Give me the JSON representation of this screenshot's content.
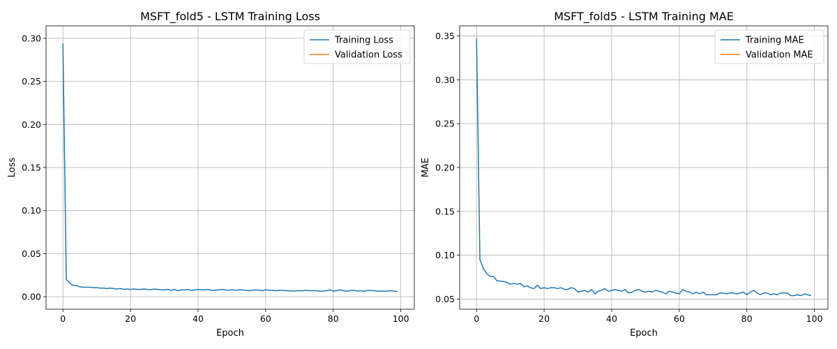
{
  "chart_data": [
    {
      "type": "line",
      "title": "MSFT_fold5 - LSTM Training Loss",
      "xlabel": "Epoch",
      "ylabel": "Loss",
      "xlim": [
        -5,
        104
      ],
      "ylim": [
        -0.0145,
        0.3145
      ],
      "xticks": [
        0,
        20,
        40,
        60,
        80,
        100
      ],
      "yticks": [
        0.0,
        0.05,
        0.1,
        0.15,
        0.2,
        0.25,
        0.3
      ],
      "ytick_labels": [
        "0.00",
        "0.05",
        "0.10",
        "0.15",
        "0.20",
        "0.25",
        "0.30"
      ],
      "grid": true,
      "legend_position": "top-right",
      "series": [
        {
          "name": "Training Loss",
          "color": "#1f77b4",
          "x_start": 0,
          "values": [
            0.294,
            0.02,
            0.016,
            0.013,
            0.013,
            0.0115,
            0.011,
            0.011,
            0.011,
            0.0105,
            0.0105,
            0.01,
            0.01,
            0.0095,
            0.01,
            0.0095,
            0.009,
            0.0095,
            0.0085,
            0.009,
            0.0085,
            0.009,
            0.0085,
            0.0085,
            0.009,
            0.0085,
            0.008,
            0.009,
            0.0085,
            0.008,
            0.008,
            0.0085,
            0.0075,
            0.0085,
            0.007,
            0.008,
            0.008,
            0.0085,
            0.0075,
            0.008,
            0.0085,
            0.008,
            0.008,
            0.0085,
            0.0075,
            0.0075,
            0.008,
            0.0085,
            0.008,
            0.0075,
            0.008,
            0.0075,
            0.008,
            0.008,
            0.0075,
            0.007,
            0.0075,
            0.008,
            0.0075,
            0.007,
            0.008,
            0.0075,
            0.0075,
            0.007,
            0.0075,
            0.0075,
            0.007,
            0.007,
            0.0065,
            0.007,
            0.007,
            0.007,
            0.0075,
            0.007,
            0.007,
            0.007,
            0.0065,
            0.0065,
            0.007,
            0.008,
            0.0065,
            0.007,
            0.008,
            0.007,
            0.0065,
            0.007,
            0.0075,
            0.0065,
            0.007,
            0.0065,
            0.007,
            0.0075,
            0.007,
            0.0065,
            0.0065,
            0.0065,
            0.0065,
            0.007,
            0.0065,
            0.006
          ]
        },
        {
          "name": "Validation Loss",
          "color": "#ff7f0e",
          "x_start": 0,
          "values": []
        }
      ]
    },
    {
      "type": "line",
      "title": "MSFT_fold5 - LSTM Training MAE",
      "xlabel": "Epoch",
      "ylabel": "MAE",
      "xlim": [
        -5,
        104
      ],
      "ylim": [
        0.0385,
        0.3615
      ],
      "xticks": [
        0,
        20,
        40,
        60,
        80,
        100
      ],
      "yticks": [
        0.05,
        0.1,
        0.15,
        0.2,
        0.25,
        0.3,
        0.35
      ],
      "ytick_labels": [
        "0.05",
        "0.10",
        "0.15",
        "0.20",
        "0.25",
        "0.30",
        "0.35"
      ],
      "grid": true,
      "legend_position": "top-right",
      "series": [
        {
          "name": "Training MAE",
          "color": "#1f77b4",
          "x_start": 0,
          "values": [
            0.347,
            0.095,
            0.085,
            0.079,
            0.076,
            0.076,
            0.071,
            0.0705,
            0.07,
            0.069,
            0.067,
            0.068,
            0.067,
            0.068,
            0.064,
            0.065,
            0.063,
            0.062,
            0.066,
            0.062,
            0.063,
            0.062,
            0.063,
            0.063,
            0.062,
            0.063,
            0.061,
            0.061,
            0.063,
            0.062,
            0.058,
            0.059,
            0.06,
            0.058,
            0.061,
            0.056,
            0.059,
            0.06,
            0.062,
            0.059,
            0.06,
            0.061,
            0.06,
            0.059,
            0.061,
            0.057,
            0.058,
            0.06,
            0.061,
            0.059,
            0.058,
            0.059,
            0.058,
            0.06,
            0.059,
            0.058,
            0.056,
            0.059,
            0.058,
            0.057,
            0.056,
            0.061,
            0.059,
            0.058,
            0.056,
            0.058,
            0.056,
            0.058,
            0.055,
            0.055,
            0.055,
            0.055,
            0.057,
            0.057,
            0.056,
            0.057,
            0.057,
            0.056,
            0.057,
            0.058,
            0.055,
            0.058,
            0.06,
            0.057,
            0.055,
            0.057,
            0.057,
            0.055,
            0.056,
            0.055,
            0.057,
            0.057,
            0.057,
            0.054,
            0.054,
            0.055,
            0.054,
            0.056,
            0.055,
            0.054
          ]
        },
        {
          "name": "Validation MAE",
          "color": "#ff7f0e",
          "x_start": 0,
          "values": []
        }
      ]
    }
  ]
}
